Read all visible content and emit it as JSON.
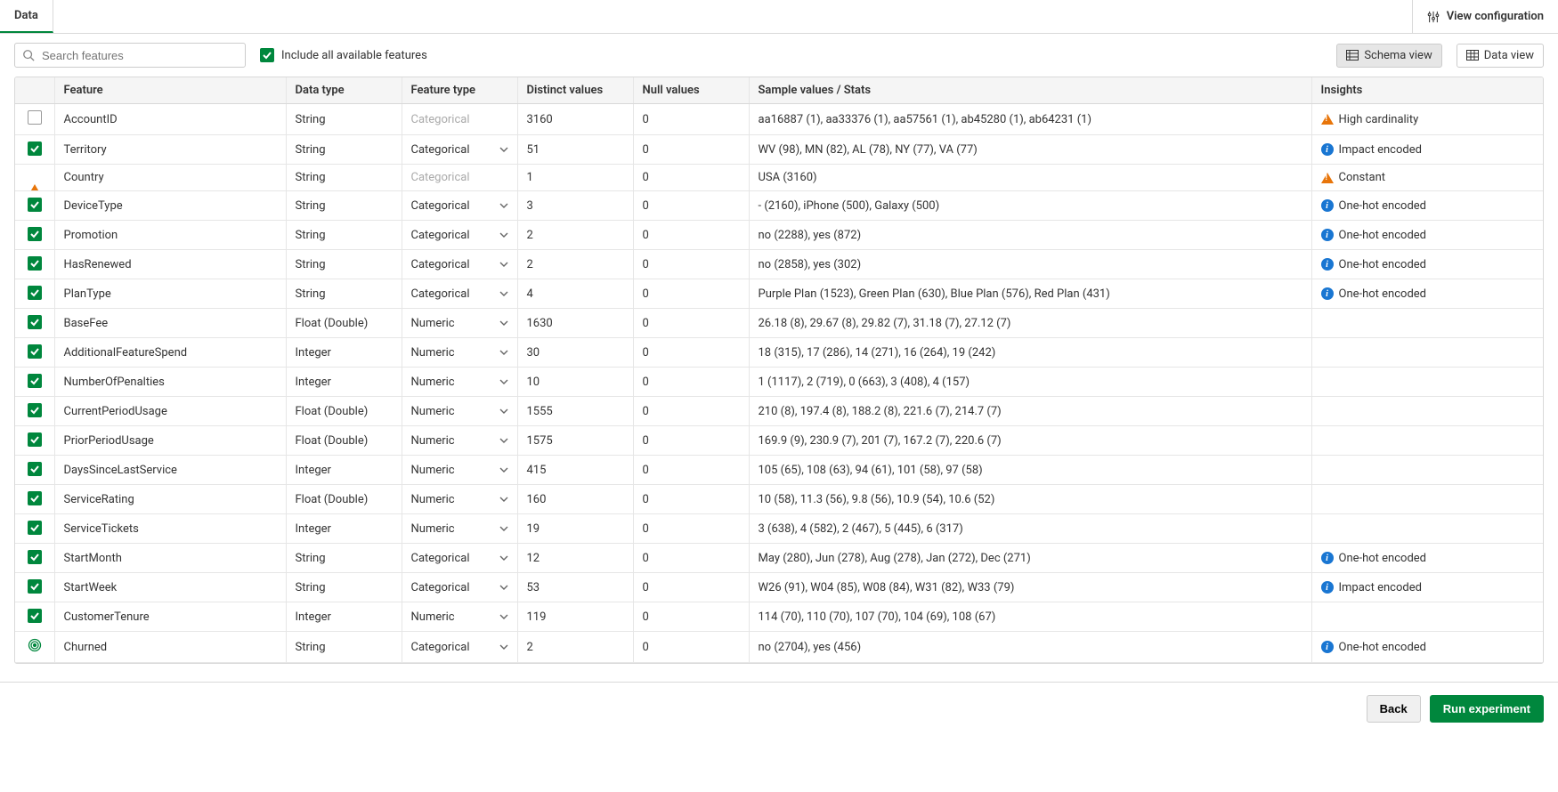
{
  "tabs": {
    "data": "Data"
  },
  "toolbar": {
    "view_config": "View configuration",
    "search_placeholder": "Search features",
    "include_all": "Include all available features",
    "schema_view": "Schema view",
    "data_view": "Data view"
  },
  "columns": {
    "feature": "Feature",
    "data_type": "Data type",
    "feature_type": "Feature type",
    "distinct": "Distinct values",
    "null": "Null values",
    "sample": "Sample values / Stats",
    "insights": "Insights"
  },
  "rows": [
    {
      "sel": "unchecked",
      "feature": "AccountID",
      "data_type": "String",
      "feature_type": "Categorical",
      "ft_editable": false,
      "distinct": "3160",
      "null": "0",
      "sample": "aa16887 (1), aa33376 (1), aa57561 (1), ab45280 (1), ab64231 (1)",
      "insight_icon": "warn",
      "insight": "High cardinality"
    },
    {
      "sel": "checked",
      "feature": "Territory",
      "data_type": "String",
      "feature_type": "Categorical",
      "ft_editable": true,
      "distinct": "51",
      "null": "0",
      "sample": "WV (98), MN (82), AL (78), NY (77), VA (77)",
      "insight_icon": "info",
      "insight": "Impact encoded"
    },
    {
      "sel": "warn",
      "feature": "Country",
      "data_type": "String",
      "feature_type": "Categorical",
      "ft_editable": false,
      "distinct": "1",
      "null": "0",
      "sample": "USA (3160)",
      "insight_icon": "warn",
      "insight": "Constant"
    },
    {
      "sel": "checked",
      "feature": "DeviceType",
      "data_type": "String",
      "feature_type": "Categorical",
      "ft_editable": true,
      "distinct": "3",
      "null": "0",
      "sample": "- (2160), iPhone (500), Galaxy (500)",
      "insight_icon": "info",
      "insight": "One-hot encoded"
    },
    {
      "sel": "checked",
      "feature": "Promotion",
      "data_type": "String",
      "feature_type": "Categorical",
      "ft_editable": true,
      "distinct": "2",
      "null": "0",
      "sample": "no (2288), yes (872)",
      "insight_icon": "info",
      "insight": "One-hot encoded"
    },
    {
      "sel": "checked",
      "feature": "HasRenewed",
      "data_type": "String",
      "feature_type": "Categorical",
      "ft_editable": true,
      "distinct": "2",
      "null": "0",
      "sample": "no (2858), yes (302)",
      "insight_icon": "info",
      "insight": "One-hot encoded"
    },
    {
      "sel": "checked",
      "feature": "PlanType",
      "data_type": "String",
      "feature_type": "Categorical",
      "ft_editable": true,
      "distinct": "4",
      "null": "0",
      "sample": "Purple Plan (1523), Green Plan (630), Blue Plan (576), Red Plan (431)",
      "insight_icon": "info",
      "insight": "One-hot encoded"
    },
    {
      "sel": "checked",
      "feature": "BaseFee",
      "data_type": "Float (Double)",
      "feature_type": "Numeric",
      "ft_editable": true,
      "distinct": "1630",
      "null": "0",
      "sample": "26.18 (8), 29.67 (8), 29.82 (7), 31.18 (7), 27.12 (7)",
      "insight_icon": "",
      "insight": ""
    },
    {
      "sel": "checked",
      "feature": "AdditionalFeatureSpend",
      "data_type": "Integer",
      "feature_type": "Numeric",
      "ft_editable": true,
      "distinct": "30",
      "null": "0",
      "sample": "18 (315), 17 (286), 14 (271), 16 (264), 19 (242)",
      "insight_icon": "",
      "insight": ""
    },
    {
      "sel": "checked",
      "feature": "NumberOfPenalties",
      "data_type": "Integer",
      "feature_type": "Numeric",
      "ft_editable": true,
      "distinct": "10",
      "null": "0",
      "sample": "1 (1117), 2 (719), 0 (663), 3 (408), 4 (157)",
      "insight_icon": "",
      "insight": ""
    },
    {
      "sel": "checked",
      "feature": "CurrentPeriodUsage",
      "data_type": "Float (Double)",
      "feature_type": "Numeric",
      "ft_editable": true,
      "distinct": "1555",
      "null": "0",
      "sample": "210 (8), 197.4 (8), 188.2 (8), 221.6 (7), 214.7 (7)",
      "insight_icon": "",
      "insight": ""
    },
    {
      "sel": "checked",
      "feature": "PriorPeriodUsage",
      "data_type": "Float (Double)",
      "feature_type": "Numeric",
      "ft_editable": true,
      "distinct": "1575",
      "null": "0",
      "sample": "169.9 (9), 230.9 (7), 201 (7), 167.2 (7), 220.6 (7)",
      "insight_icon": "",
      "insight": ""
    },
    {
      "sel": "checked",
      "feature": "DaysSinceLastService",
      "data_type": "Integer",
      "feature_type": "Numeric",
      "ft_editable": true,
      "distinct": "415",
      "null": "0",
      "sample": "105 (65), 108 (63), 94 (61), 101 (58), 97 (58)",
      "insight_icon": "",
      "insight": ""
    },
    {
      "sel": "checked",
      "feature": "ServiceRating",
      "data_type": "Float (Double)",
      "feature_type": "Numeric",
      "ft_editable": true,
      "distinct": "160",
      "null": "0",
      "sample": "10 (58), 11.3 (56), 9.8 (56), 10.9 (54), 10.6 (52)",
      "insight_icon": "",
      "insight": ""
    },
    {
      "sel": "checked",
      "feature": "ServiceTickets",
      "data_type": "Integer",
      "feature_type": "Numeric",
      "ft_editable": true,
      "distinct": "19",
      "null": "0",
      "sample": "3 (638), 4 (582), 2 (467), 5 (445), 6 (317)",
      "insight_icon": "",
      "insight": ""
    },
    {
      "sel": "checked",
      "feature": "StartMonth",
      "data_type": "String",
      "feature_type": "Categorical",
      "ft_editable": true,
      "distinct": "12",
      "null": "0",
      "sample": "May (280), Jun (278), Aug (278), Jan (272), Dec (271)",
      "insight_icon": "info",
      "insight": "One-hot encoded"
    },
    {
      "sel": "checked",
      "feature": "StartWeek",
      "data_type": "String",
      "feature_type": "Categorical",
      "ft_editable": true,
      "distinct": "53",
      "null": "0",
      "sample": "W26 (91), W04 (85), W08 (84), W31 (82), W33 (79)",
      "insight_icon": "info",
      "insight": "Impact encoded"
    },
    {
      "sel": "checked",
      "feature": "CustomerTenure",
      "data_type": "Integer",
      "feature_type": "Numeric",
      "ft_editable": true,
      "distinct": "119",
      "null": "0",
      "sample": "114 (70), 110 (70), 107 (70), 104 (69), 108 (67)",
      "insight_icon": "",
      "insight": ""
    },
    {
      "sel": "target",
      "feature": "Churned",
      "data_type": "String",
      "feature_type": "Categorical",
      "ft_editable": true,
      "distinct": "2",
      "null": "0",
      "sample": "no (2704), yes (456)",
      "insight_icon": "info",
      "insight": "One-hot encoded"
    }
  ],
  "footer": {
    "back": "Back",
    "run": "Run experiment"
  },
  "colors": {
    "accent": "#00873d",
    "info": "#1976d2",
    "warn": "#e8750a"
  }
}
